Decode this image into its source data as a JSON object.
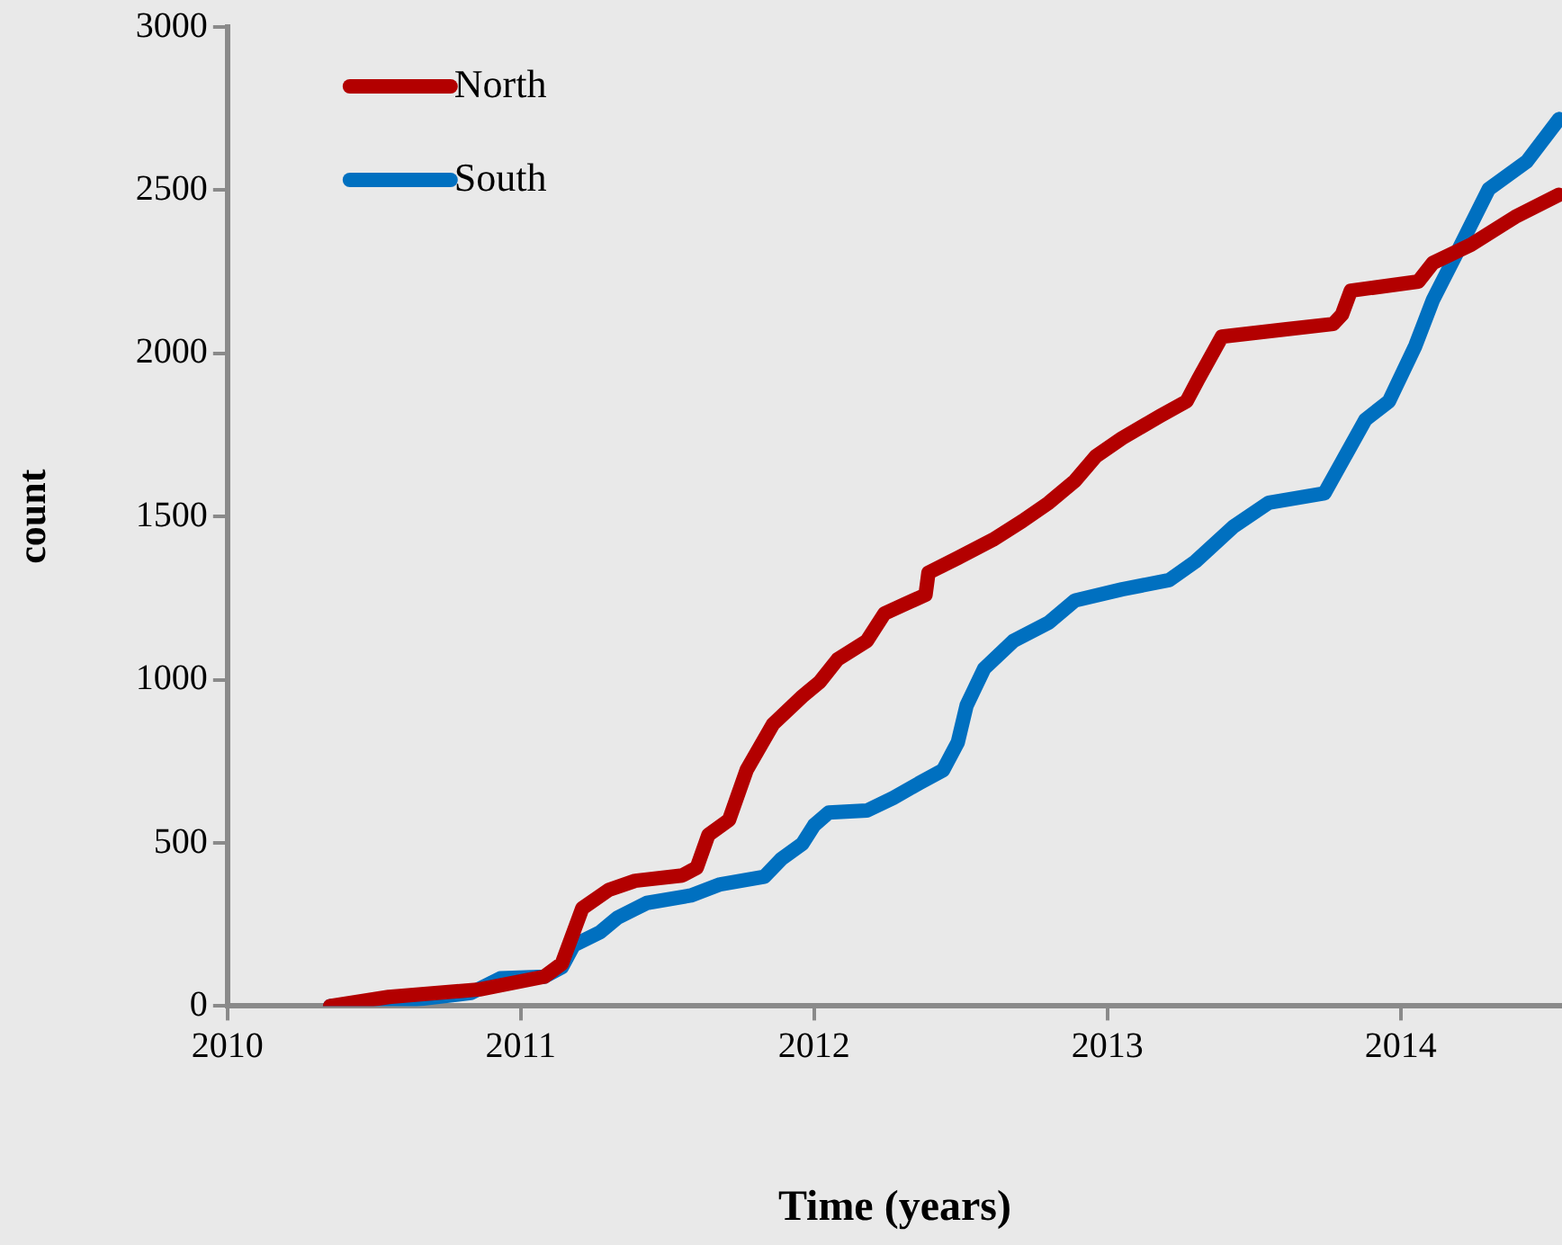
{
  "chart_data": {
    "type": "line",
    "xlabel": "Time (years)",
    "ylabel": "count",
    "xlim": [
      2010,
      2014.55
    ],
    "xticks": [
      2010,
      2011,
      2012,
      2013,
      2014
    ],
    "ylim": [
      0,
      3000
    ],
    "yticks": [
      0,
      500,
      1000,
      1500,
      2000,
      2500,
      3000
    ],
    "legend": "top left",
    "marker": "none",
    "line_style": "solid",
    "series": [
      {
        "name": "North",
        "color": "#b30000",
        "x": [
          2010.35,
          2010.55,
          2010.86,
          2011.08,
          2011.14,
          2011.21,
          2011.3,
          2011.39,
          2011.55,
          2011.6,
          2011.64,
          2011.71,
          2011.77,
          2011.86,
          2011.96,
          2012.02,
          2012.08,
          2012.18,
          2012.24,
          2012.31,
          2012.38,
          2012.39,
          2012.49,
          2012.61,
          2012.71,
          2012.8,
          2012.89,
          2012.96,
          2013.05,
          2013.18,
          2013.27,
          2013.31,
          2013.39,
          2013.61,
          2013.77,
          2013.8,
          2013.83,
          2014.06,
          2014.11,
          2014.24,
          2014.39,
          2014.54
        ],
        "values": [
          0,
          28,
          51,
          90,
          130,
          300,
          356,
          384,
          400,
          424,
          525,
          570,
          723,
          864,
          949,
          994,
          1062,
          1119,
          1203,
          1232,
          1260,
          1328,
          1373,
          1429,
          1486,
          1542,
          1610,
          1684,
          1740,
          1808,
          1853,
          1921,
          2051,
          2074,
          2090,
          2119,
          2192,
          2220,
          2277,
          2333,
          2418,
          2486
        ]
      },
      {
        "name": "South",
        "color": "#0070c0",
        "x": [
          2010.35,
          2010.61,
          2010.83,
          2010.93,
          2011.08,
          2011.14,
          2011.18,
          2011.27,
          2011.33,
          2011.43,
          2011.58,
          2011.68,
          2011.83,
          2011.89,
          2011.96,
          2012.0,
          2012.05,
          2012.18,
          2012.27,
          2012.36,
          2012.44,
          2012.49,
          2012.52,
          2012.58,
          2012.68,
          2012.8,
          2012.89,
          2013.05,
          2013.21,
          2013.3,
          2013.43,
          2013.55,
          2013.74,
          2013.81,
          2013.88,
          2013.96,
          2014.05,
          2014.11,
          2014.19,
          2014.3,
          2014.43,
          2014.54
        ],
        "values": [
          0,
          17,
          40,
          85,
          90,
          119,
          186,
          226,
          271,
          316,
          339,
          373,
          396,
          452,
          497,
          554,
          593,
          599,
          638,
          684,
          723,
          808,
          921,
          1034,
          1119,
          1175,
          1243,
          1277,
          1305,
          1362,
          1469,
          1542,
          1571,
          1684,
          1797,
          1853,
          2023,
          2164,
          2305,
          2503,
          2588,
          2718
        ]
      }
    ]
  }
}
